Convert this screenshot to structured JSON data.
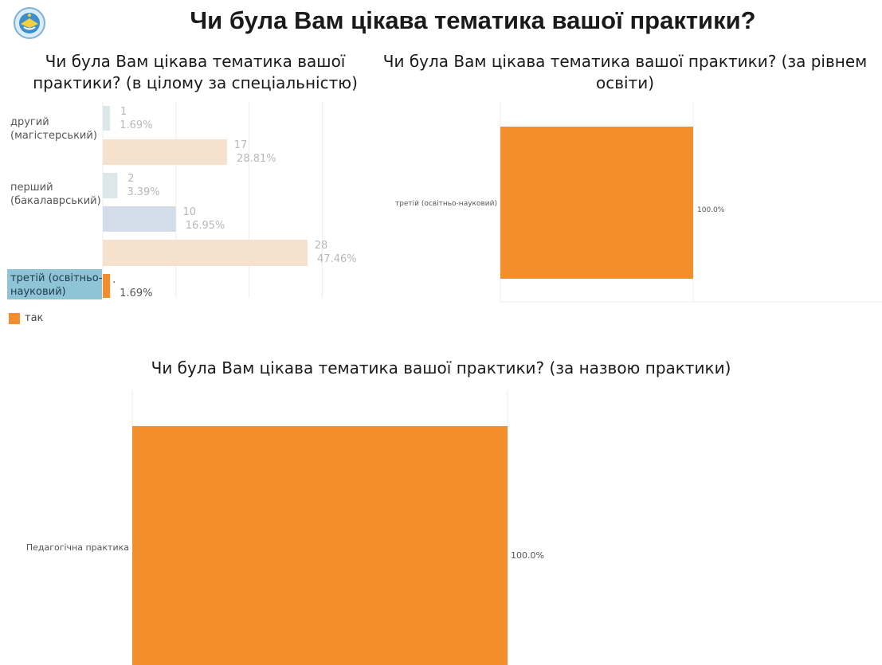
{
  "page": {
    "title": "Чи була Вам цікава тематика вашої практики?"
  },
  "logo": {
    "icon": "university-emblem-icon"
  },
  "legend": {
    "items": [
      {
        "label": "так",
        "color": "#F28E2B"
      }
    ]
  },
  "chart_data": [
    {
      "id": "by-specialty",
      "type": "bar",
      "orientation": "horizontal",
      "title_lines": [
        "Чи була Вам цікава тематика вашої",
        "практики? (в цілому за спеціальністю)"
      ],
      "xlim": [
        0,
        35
      ],
      "rows": [
        {
          "label_lines": [
            "другий",
            "(магістерський)"
          ],
          "highlighted": false,
          "bars": [
            {
              "value": 1,
              "percent": "1.69%",
              "color": "#DCE7EA"
            },
            {
              "value": 17,
              "percent": "28.81%",
              "color": "#F6E1CF"
            }
          ]
        },
        {
          "label_lines": [
            "перший",
            "(бакалаврський)"
          ],
          "highlighted": false,
          "bars": [
            {
              "value": 2,
              "percent": "3.39%",
              "color": "#DCE7EA"
            },
            {
              "value": 10,
              "percent": "16.95%",
              "color": "#D3DDE9"
            },
            {
              "value": 28,
              "percent": "47.46%",
              "color": "#F6E1CF"
            }
          ]
        },
        {
          "label_lines": [
            "третій (освітньо-",
            "науковий)"
          ],
          "highlighted": true,
          "highlight_color": "#8FC3D6",
          "bars": [
            {
              "value": 1,
              "percent": "1.69%",
              "color": "#F28E2B",
              "count_label": "."
            }
          ]
        }
      ]
    },
    {
      "id": "by-education-level",
      "type": "bar",
      "orientation": "horizontal",
      "title_lines": [
        "Чи була Вам цікава тематика вашої практики? (за рівнем",
        "освіти)"
      ],
      "xlim": [
        0,
        100
      ],
      "categories": [
        "третій (освітньо-науковий)"
      ],
      "values": [
        100.0
      ],
      "value_labels": [
        "100.0%"
      ],
      "color": "#F28E2B"
    },
    {
      "id": "by-practice-name",
      "type": "bar",
      "orientation": "horizontal",
      "title_lines": [
        "Чи була Вам цікава тематика вашої практики? (за назвою практики)"
      ],
      "xlim": [
        0,
        100
      ],
      "categories": [
        "Педагогічна практика"
      ],
      "values": [
        100.0
      ],
      "value_labels": [
        "100.0%"
      ],
      "color": "#F28E2B"
    }
  ]
}
